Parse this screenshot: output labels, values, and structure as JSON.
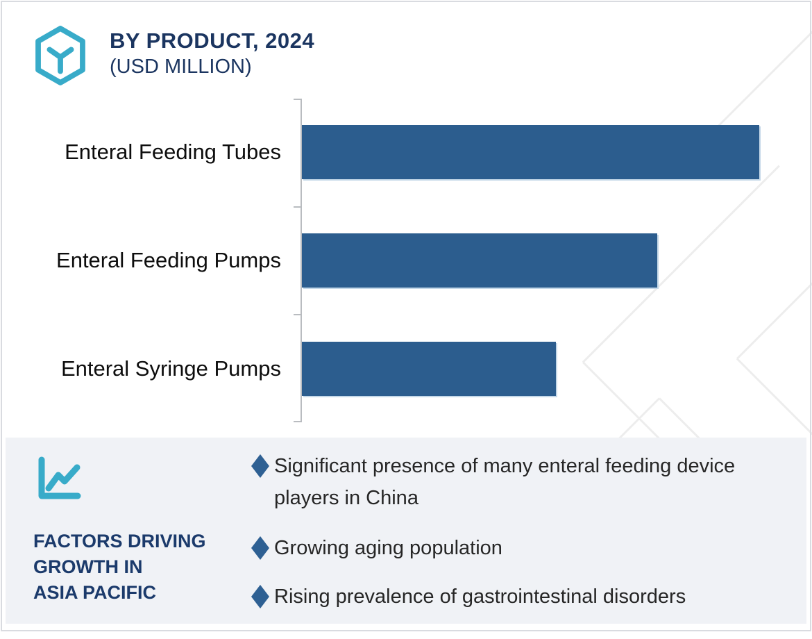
{
  "header": {
    "title": "BY PRODUCT, 2024",
    "subtitle": "(USD MILLION)",
    "logo_icon": "hexagon-cube-icon"
  },
  "chart_data": {
    "type": "bar",
    "orientation": "horizontal",
    "title": "BY PRODUCT, 2024 (USD MILLION)",
    "categories": [
      "Enteral Feeding Tubes",
      "Enteral Feeding Pumps",
      "Enteral Syringe Pumps"
    ],
    "values": [
      90,
      70,
      50
    ],
    "values_note": "no numeric data labels shown; values estimated as percent of plot width",
    "xlabel": "",
    "ylabel": "",
    "grid": "off",
    "legend": "none",
    "bar_color": "#2c5d8e",
    "axis_color": "#b9bcc0"
  },
  "factors": {
    "icon": "line-chart-icon",
    "heading_lines": [
      "FACTORS DRIVING",
      "GROWTH IN",
      "ASIA PACIFIC"
    ],
    "bullet_icon": "diamond-bullet-icon",
    "bullet_color": "#2e6093",
    "items": [
      "Significant presence of many enteral feeding device players in China",
      "Growing aging population",
      "Rising prevalence of gastrointestinal disorders"
    ]
  },
  "colors": {
    "accent_teal": "#38abc9",
    "navy_text": "#1b3560",
    "panel_background": "#f0f2f6",
    "watermark_gray": "#ededed"
  }
}
